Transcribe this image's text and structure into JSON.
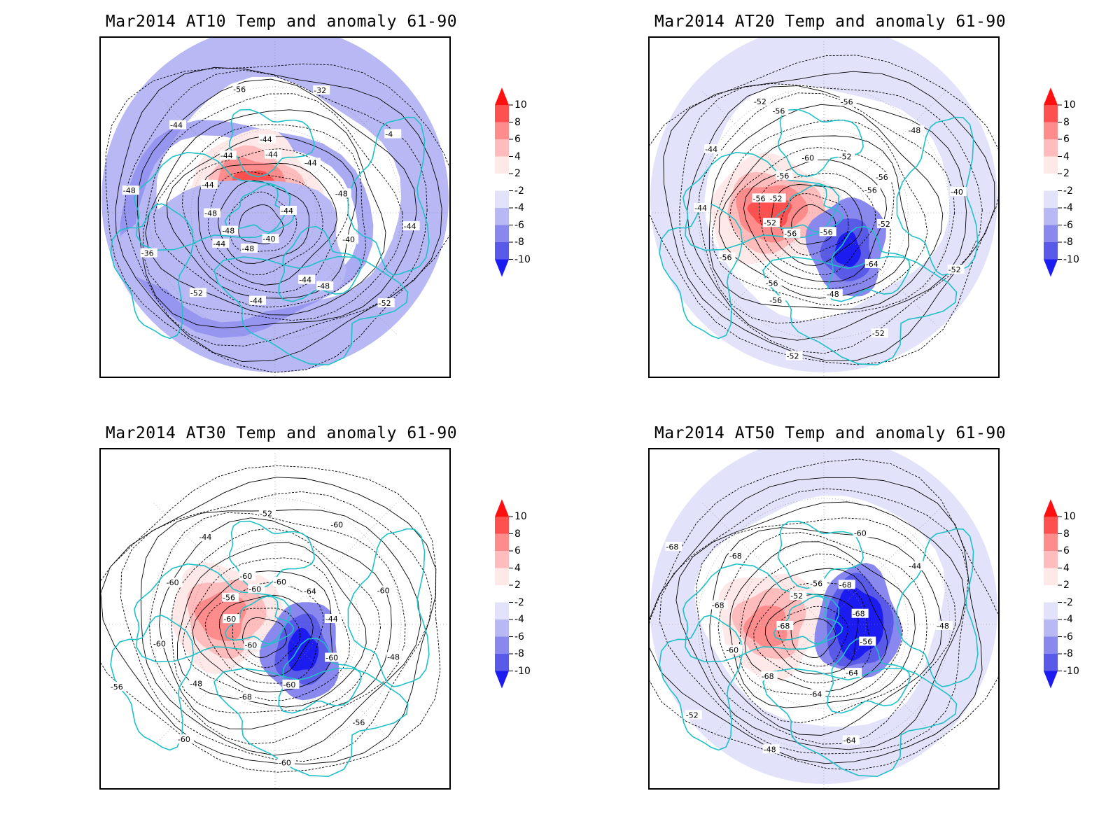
{
  "figure": {
    "panels": [
      {
        "id": "at10",
        "title": "Mar2014 AT10 Temp and anomaly 61-90",
        "contour_labels": [
          "-44",
          "-44",
          "-44",
          "-48",
          "-48",
          "-4",
          "-48",
          "-44",
          "-40",
          "-36",
          "-32",
          "-40",
          "-44",
          "-48",
          "-52",
          "-56",
          "-52",
          "-48",
          "-44",
          "-44",
          "-44",
          "-44",
          "-48",
          "-44",
          "-44"
        ]
      },
      {
        "id": "at20",
        "title": "Mar2014 AT20 Temp and anomaly 61-90",
        "contour_labels": [
          "-56",
          "-56",
          "-56",
          "-56",
          "-52",
          "-52",
          "-52",
          "-52",
          "-48",
          "-44",
          "-40",
          "-56",
          "-60",
          "-64",
          "-44",
          "-48",
          "-52",
          "-56",
          "-52",
          "-56",
          "-56",
          "-52",
          "-52",
          "-56",
          "-56",
          "-56"
        ]
      },
      {
        "id": "at30",
        "title": "Mar2014 AT30 Temp and anomaly 61-90",
        "contour_labels": [
          "-60",
          "-60",
          "-60",
          "-60",
          "-60",
          "-60",
          "-56",
          "-44",
          "-48",
          "-52",
          "-56",
          "-60",
          "-64",
          "-68",
          "-44",
          "-48",
          "-56",
          "-60",
          "-60",
          "-60",
          "-60",
          "-60",
          "-60"
        ]
      },
      {
        "id": "at50",
        "title": "Mar2014 AT50 Temp and anomaly 61-90",
        "contour_labels": [
          "-68",
          "-68",
          "-64",
          "-68",
          "-48",
          "-52",
          "-56",
          "-64",
          "-68",
          "-44",
          "-48",
          "-52",
          "-56",
          "-60",
          "-60",
          "-64",
          "-68",
          "-68",
          "-68"
        ]
      }
    ],
    "colorbar": {
      "ticks": [
        "10",
        "8",
        "6",
        "4",
        "2",
        "-2",
        "-4",
        "-6",
        "-8",
        "-10"
      ],
      "colors": [
        "#ff1010",
        "#ff5050",
        "#ff8c8c",
        "#ffbcbc",
        "#ffe8e8",
        "#ffffff",
        "#e2e2fa",
        "#b8b8f4",
        "#8888ee",
        "#5a5ae8",
        "#1c1cf0"
      ]
    },
    "colors": {
      "coast": "#20c0c8",
      "contour": "#000000",
      "grid": "#888888"
    }
  }
}
